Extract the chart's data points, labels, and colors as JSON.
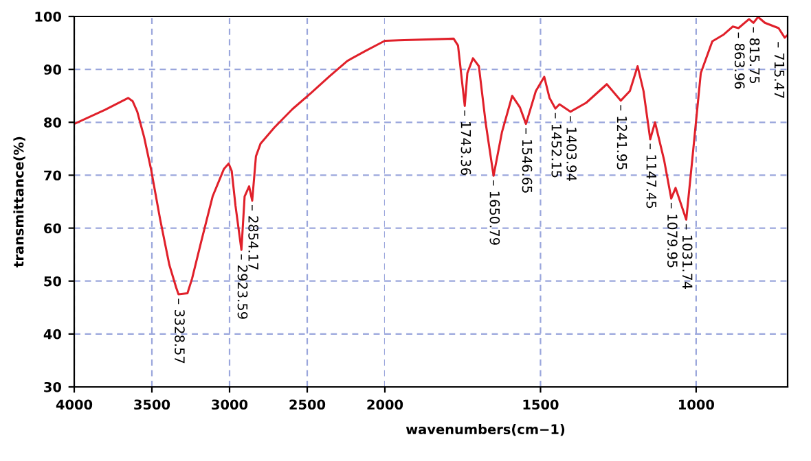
{
  "chart_data": [
    {
      "type": "line",
      "ylabel": "transmittance(%)",
      "xlim": [
        4000,
        2000
      ],
      "ylim": [
        30,
        100
      ],
      "xticks": [
        4000,
        3500,
        3000,
        2500,
        2000
      ],
      "yticks": [
        30,
        40,
        50,
        60,
        70,
        80,
        90,
        100
      ],
      "grid": true,
      "marker": "none",
      "line_style": "solid",
      "series": [
        {
          "color": "#e0202a",
          "x": [
            4000,
            3800,
            3653,
            3624,
            3594,
            3550,
            3506,
            3447,
            3388,
            3344,
            3328.57,
            3271,
            3241,
            3183,
            3109,
            3036,
            3006,
            2986,
            2962,
            2923.59,
            2903,
            2874,
            2854.17,
            2830,
            2800,
            2712,
            2595,
            2477,
            2360,
            2242,
            2124,
            2007,
            2000
          ],
          "values": [
            79.7,
            82.4,
            84.6,
            84.0,
            82,
            77.2,
            71.2,
            61.7,
            53.1,
            48.8,
            47.5,
            47.7,
            50.5,
            57.4,
            66,
            71.2,
            72.2,
            70.8,
            64.3,
            55.9,
            66,
            67.9,
            65.2,
            73.6,
            76,
            79,
            82.5,
            85.5,
            88.6,
            91.6,
            93.5,
            95.3,
            95.4
          ]
        }
      ],
      "annotations": [
        {
          "text": "– 3328.57",
          "x": 3328.57,
          "y": 47.5
        },
        {
          "text": "– 2923.59",
          "x": 2923.59,
          "y": 55.9
        },
        {
          "text": "– 2854.17",
          "x": 2854.17,
          "y": 65.2
        }
      ]
    },
    {
      "type": "line",
      "xlabel": "wavenumbers(cm−1)",
      "xlim": [
        2000,
        706
      ],
      "ylim": [
        30,
        100
      ],
      "xticks": [
        1500,
        1000
      ],
      "yticks": [
        30,
        40,
        50,
        60,
        70,
        80,
        90,
        100
      ],
      "tick_labels": "x",
      "grid": true,
      "marker": "none",
      "line_style": "solid",
      "series": [
        {
          "color": "#e0202a",
          "x": [
            2000,
            1956,
            1779,
            1765,
            1743.36,
            1735,
            1717,
            1698,
            1676,
            1650.79,
            1624,
            1591,
            1566,
            1546.65,
            1515,
            1488,
            1471,
            1452.15,
            1439,
            1403.94,
            1353,
            1287,
            1241.95,
            1213,
            1188,
            1169,
            1147.45,
            1132,
            1103,
            1079.95,
            1066,
            1031.74,
            1014,
            985,
            948,
            911,
            882,
            863.96,
            830,
            815.75,
            801,
            779,
            735,
            715.47,
            706
          ],
          "values": [
            95.4,
            95.5,
            95.8,
            94.5,
            83.1,
            89.3,
            92.1,
            90.6,
            79.8,
            69.9,
            78.1,
            85,
            82.8,
            79.7,
            85.9,
            88.6,
            84.6,
            82.6,
            83.4,
            82,
            83.7,
            87.2,
            84.1,
            85.9,
            90.6,
            85.9,
            76.8,
            80,
            72.9,
            65.6,
            67.6,
            61.6,
            72,
            89.3,
            95.3,
            96.6,
            98.1,
            97.8,
            99.5,
            98.8,
            99.9,
            98.8,
            97.8,
            96,
            96.5
          ]
        }
      ],
      "annotations": [
        {
          "text": "– 1743.36",
          "x": 1743.36,
          "y": 83.1
        },
        {
          "text": "– 1650.79",
          "x": 1650.79,
          "y": 69.9
        },
        {
          "text": "– 1546.65",
          "x": 1546.65,
          "y": 79.7
        },
        {
          "text": "– 1452.15",
          "x": 1452.15,
          "y": 82.6
        },
        {
          "text": "– 1403.94",
          "x": 1403.94,
          "y": 82
        },
        {
          "text": "– 1241.95",
          "x": 1241.95,
          "y": 84.1
        },
        {
          "text": "– 1147.45",
          "x": 1147.45,
          "y": 76.8
        },
        {
          "text": "– 1079.95",
          "x": 1079.95,
          "y": 65.6
        },
        {
          "text": "– 1031.74",
          "x": 1031.74,
          "y": 61.6
        },
        {
          "text": "– 863.96",
          "x": 863.96,
          "y": 97.8
        },
        {
          "text": "– 815.75",
          "x": 815.75,
          "y": 98.8
        },
        {
          "text": "– 715.47",
          "x": 715.47,
          "y": 96
        }
      ]
    }
  ]
}
